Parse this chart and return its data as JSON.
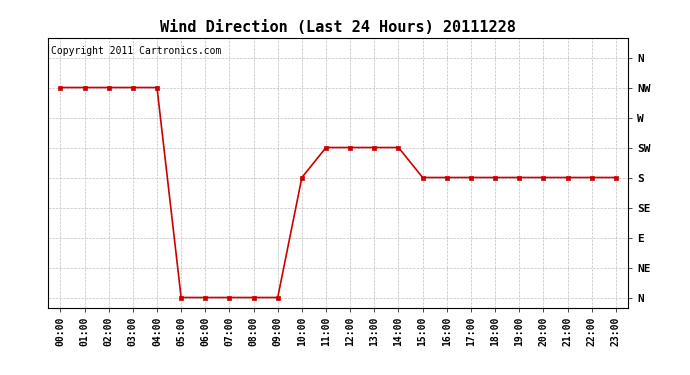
{
  "title": "Wind Direction (Last 24 Hours) 20111228",
  "copyright": "Copyright 2011 Cartronics.com",
  "background_color": "#ffffff",
  "line_color": "#cc0000",
  "marker_color": "#cc0000",
  "grid_color": "#c0c0c0",
  "x_labels": [
    "00:00",
    "01:00",
    "02:00",
    "03:00",
    "04:00",
    "05:00",
    "06:00",
    "07:00",
    "08:00",
    "09:00",
    "10:00",
    "11:00",
    "12:00",
    "13:00",
    "14:00",
    "15:00",
    "16:00",
    "17:00",
    "18:00",
    "19:00",
    "20:00",
    "21:00",
    "22:00",
    "23:00"
  ],
  "x_values": [
    0,
    1,
    2,
    3,
    4,
    5,
    6,
    7,
    8,
    9,
    10,
    11,
    12,
    13,
    14,
    15,
    16,
    17,
    18,
    19,
    20,
    21,
    22,
    23
  ],
  "y_values": [
    315,
    315,
    315,
    315,
    315,
    0,
    0,
    0,
    0,
    0,
    180,
    225,
    225,
    225,
    225,
    180,
    180,
    180,
    180,
    180,
    180,
    180,
    180,
    180
  ],
  "y_ticks": [
    0,
    45,
    90,
    135,
    180,
    225,
    270,
    315,
    360
  ],
  "y_labels": [
    "N",
    "NE",
    "E",
    "SE",
    "S",
    "SW",
    "W",
    "NW",
    "N"
  ],
  "ylim": [
    -15,
    390
  ],
  "xlim": [
    -0.5,
    23.5
  ],
  "title_fontsize": 11,
  "copyright_fontsize": 7,
  "tick_fontsize": 7,
  "ytick_fontsize": 8
}
